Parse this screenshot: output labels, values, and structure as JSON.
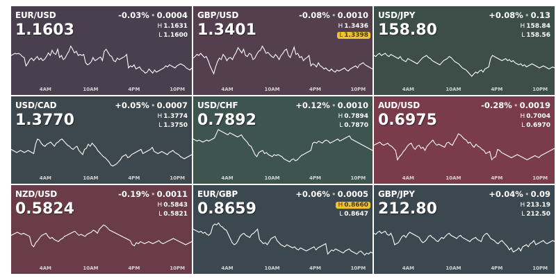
{
  "tiles": [
    {
      "pair": "EUR/USD",
      "price": "1.1603",
      "change_pct": "-0.03%",
      "change_abs": "0.0004",
      "high": "1.1631",
      "low": "1.1600",
      "highlight": "",
      "color": "#4a3f4e",
      "series": [
        60,
        62,
        64,
        63,
        64,
        62,
        58,
        56,
        40,
        45,
        52,
        55,
        50,
        54,
        58,
        52,
        55,
        50,
        53,
        58,
        65,
        60,
        70,
        64,
        62,
        72,
        56,
        60,
        52,
        55,
        62,
        68,
        78,
        72,
        65,
        68,
        60,
        62,
        60,
        62,
        46,
        42,
        44,
        48,
        56,
        50,
        52,
        55,
        57,
        50,
        68,
        72,
        66,
        60,
        58,
        50,
        48,
        55,
        52,
        54,
        56,
        58,
        62,
        36,
        40,
        38,
        42,
        34,
        36,
        38,
        32,
        30,
        26,
        28,
        34,
        30,
        26,
        32,
        28,
        30,
        32,
        34,
        36,
        40,
        38,
        42,
        40,
        38,
        36,
        40,
        42,
        44,
        42,
        40,
        36,
        34,
        32,
        36
      ]
    },
    {
      "pair": "GBP/USD",
      "price": "1.3401",
      "change_pct": "-0.08%",
      "change_abs": "0.0010",
      "high": "1.3436",
      "low": "1.3398",
      "highlight": "low",
      "color": "#543f4e",
      "series": [
        55,
        58,
        62,
        60,
        64,
        60,
        56,
        58,
        50,
        40,
        32,
        25,
        38,
        48,
        55,
        52,
        62,
        58,
        50,
        55,
        56,
        52,
        60,
        66,
        75,
        70,
        65,
        72,
        60,
        58,
        64,
        62,
        52,
        55,
        62,
        68,
        70,
        78,
        72,
        64,
        66,
        62,
        58,
        56,
        62,
        58,
        52,
        60,
        64,
        70,
        72,
        60,
        56,
        66,
        76,
        62,
        64,
        56,
        58,
        50,
        54,
        56,
        60,
        40,
        44,
        42,
        38,
        46,
        40,
        38,
        34,
        36,
        32,
        30,
        34,
        30,
        28,
        32,
        30,
        32,
        34,
        36,
        32,
        30,
        34,
        36,
        38,
        40,
        36,
        42,
        44,
        46,
        42,
        40,
        38,
        36,
        34
      ]
    },
    {
      "pair": "USD/JPY",
      "price": "158.80",
      "change_pct": "+0.08%",
      "change_abs": "0.13",
      "high": "158.84",
      "low": "158.56",
      "highlight": "",
      "color": "#3d4e49",
      "series": [
        60,
        58,
        62,
        64,
        60,
        62,
        64,
        60,
        58,
        62,
        60,
        58,
        56,
        54,
        58,
        52,
        50,
        48,
        54,
        52,
        50,
        48,
        46,
        44,
        48,
        52,
        56,
        58,
        60,
        56,
        54,
        50,
        48,
        46,
        44,
        42,
        46,
        50,
        52,
        54,
        58,
        56,
        52,
        48,
        46,
        44,
        40,
        36,
        34,
        32,
        28,
        24,
        20,
        24,
        28,
        26,
        30,
        32,
        28,
        34,
        36,
        38,
        54,
        60,
        58,
        56,
        54,
        52,
        50,
        52,
        54,
        50,
        52,
        48,
        50,
        46,
        44,
        42,
        44,
        40,
        42,
        38,
        40,
        42,
        44,
        42,
        40,
        38,
        36,
        38,
        40,
        38,
        36,
        34,
        36,
        38,
        36
      ]
    },
    {
      "pair": "USD/CAD",
      "price": "1.3770",
      "change_pct": "+0.05%",
      "change_abs": "0.0007",
      "high": "1.3774",
      "low": "1.3750",
      "highlight": "",
      "color": "#3c484d",
      "series": [
        50,
        48,
        46,
        44,
        46,
        48,
        46,
        44,
        46,
        48,
        46,
        44,
        42,
        60,
        70,
        68,
        62,
        58,
        56,
        60,
        62,
        64,
        60,
        56,
        62,
        64,
        68,
        70,
        66,
        62,
        58,
        56,
        52,
        50,
        54,
        56,
        48,
        44,
        40,
        50,
        52,
        60,
        56,
        62,
        58,
        54,
        48,
        44,
        40,
        36,
        34,
        30,
        26,
        20,
        18,
        20,
        22,
        26,
        30,
        36,
        38,
        40,
        34,
        36,
        40,
        42,
        44,
        46,
        48,
        50,
        42,
        44,
        46,
        48,
        50,
        54,
        46,
        44,
        42,
        44,
        46,
        44,
        42,
        40,
        44,
        46,
        48,
        44,
        42,
        40,
        36,
        34,
        32,
        34,
        36,
        38,
        40
      ]
    },
    {
      "pair": "USD/CHF",
      "price": "0.7892",
      "change_pct": "+0.12%",
      "change_abs": "0.0010",
      "high": "0.7894",
      "low": "0.7870",
      "highlight": "",
      "color": "#3e544e",
      "series": [
        70,
        68,
        66,
        68,
        66,
        64,
        66,
        68,
        66,
        68,
        70,
        72,
        80,
        88,
        86,
        84,
        82,
        80,
        78,
        82,
        80,
        78,
        76,
        74,
        76,
        78,
        72,
        68,
        64,
        58,
        56,
        48,
        40,
        36,
        44,
        46,
        48,
        42,
        44,
        40,
        38,
        36,
        40,
        38,
        40,
        38,
        36,
        32,
        30,
        28,
        26,
        30,
        32,
        28,
        30,
        34,
        38,
        40,
        42,
        44,
        46,
        48,
        62,
        64,
        62,
        66,
        64,
        62,
        66,
        68,
        66,
        62,
        64,
        66,
        68,
        70,
        66,
        68,
        70,
        72,
        74,
        76,
        70,
        68,
        66,
        64,
        62,
        60,
        58,
        56,
        54,
        52,
        50,
        48
      ]
    },
    {
      "pair": "AUD/USD",
      "price": "0.6975",
      "change_pct": "-0.28%",
      "change_abs": "0.0019",
      "high": "0.7004",
      "low": "0.6970",
      "highlight": "",
      "color": "#7a3c4a",
      "series": [
        58,
        60,
        62,
        64,
        60,
        58,
        60,
        62,
        58,
        56,
        52,
        48,
        30,
        36,
        40,
        46,
        50,
        56,
        60,
        62,
        54,
        50,
        56,
        58,
        52,
        54,
        48,
        56,
        60,
        64,
        68,
        62,
        58,
        60,
        58,
        56,
        54,
        62,
        64,
        60,
        58,
        66,
        72,
        80,
        78,
        74,
        70,
        68,
        62,
        64,
        58,
        54,
        60,
        56,
        54,
        50,
        48,
        42,
        44,
        46,
        30,
        34,
        36,
        50,
        48,
        44,
        42,
        40,
        38,
        36,
        34,
        36,
        38,
        40,
        38,
        36,
        34,
        32,
        30,
        32,
        34,
        36,
        38,
        36,
        34,
        38,
        40,
        42,
        44,
        46,
        48,
        50,
        52
      ]
    },
    {
      "pair": "NZD/USD",
      "price": "0.5824",
      "change_pct": "-0.19%",
      "change_abs": "0.0011",
      "high": "0.5843",
      "low": "0.5821",
      "highlight": "",
      "color": "#6a3c49",
      "series": [
        58,
        60,
        62,
        64,
        62,
        60,
        62,
        60,
        58,
        56,
        40,
        36,
        44,
        48,
        54,
        58,
        60,
        62,
        56,
        52,
        54,
        50,
        48,
        46,
        50,
        52,
        56,
        58,
        60,
        62,
        64,
        66,
        62,
        58,
        60,
        58,
        56,
        60,
        62,
        64,
        68,
        66,
        62,
        70,
        74,
        78,
        76,
        72,
        68,
        66,
        64,
        62,
        60,
        58,
        56,
        54,
        52,
        50,
        48,
        40,
        38,
        44,
        42,
        46,
        44,
        42,
        44,
        46,
        44,
        42,
        44,
        46,
        48,
        44,
        42,
        44,
        46,
        48,
        50,
        52,
        50,
        48,
        46,
        44,
        42,
        40,
        42,
        44,
        46
      ]
    },
    {
      "pair": "EUR/GBP",
      "price": "0.8659",
      "change_pct": "+0.06%",
      "change_abs": "0.0005",
      "high": "0.8660",
      "low": "0.8647",
      "highlight": "high",
      "color": "#3c4850",
      "series": [
        70,
        68,
        66,
        64,
        66,
        62,
        64,
        60,
        58,
        62,
        76,
        80,
        78,
        82,
        76,
        74,
        70,
        68,
        60,
        52,
        44,
        40,
        42,
        48,
        56,
        60,
        62,
        58,
        56,
        54,
        60,
        62,
        66,
        70,
        50,
        46,
        42,
        44,
        40,
        46,
        52,
        54,
        56,
        48,
        44,
        40,
        38,
        36,
        40,
        38,
        36,
        34,
        36,
        32,
        30,
        34,
        32,
        30,
        28,
        30,
        32,
        34,
        36,
        30,
        34,
        36,
        38,
        40,
        42,
        22,
        26,
        30,
        28,
        32,
        30,
        28,
        26,
        24,
        28,
        30,
        32,
        28,
        26,
        24,
        22,
        26,
        28,
        24,
        20,
        24,
        22,
        26,
        24
      ]
    },
    {
      "pair": "GBP/JPY",
      "price": "212.80",
      "change_pct": "+0.04%",
      "change_abs": "0.09",
      "high": "213.19",
      "low": "212.50",
      "highlight": "",
      "color": "#3c4850",
      "series": [
        62,
        60,
        64,
        66,
        62,
        64,
        66,
        60,
        58,
        62,
        54,
        40,
        42,
        44,
        50,
        56,
        58,
        54,
        60,
        64,
        62,
        60,
        58,
        56,
        54,
        48,
        44,
        46,
        50,
        56,
        58,
        54,
        52,
        48,
        46,
        50,
        54,
        52,
        56,
        60,
        62,
        58,
        56,
        54,
        52,
        56,
        58,
        54,
        52,
        50,
        48,
        46,
        50,
        52,
        54,
        50,
        48,
        46,
        56,
        60,
        62,
        58,
        52,
        50,
        48,
        44,
        42,
        46,
        48,
        44,
        40,
        36,
        30,
        34,
        26,
        28,
        30,
        34,
        28,
        36,
        38,
        40,
        36,
        42,
        44,
        48,
        40,
        42,
        44,
        46,
        48,
        44,
        42,
        44,
        46,
        48,
        46
      ]
    }
  ],
  "time_ticks": [
    "4AM",
    "10AM",
    "4PM",
    "10PM"
  ],
  "separator_glyph": "•",
  "labels": {
    "high_prefix": "H",
    "low_prefix": "L"
  },
  "colors": {
    "highlight_badge": "#f0c32e",
    "line": "#ffffff",
    "page_bg": "#ffffff"
  }
}
